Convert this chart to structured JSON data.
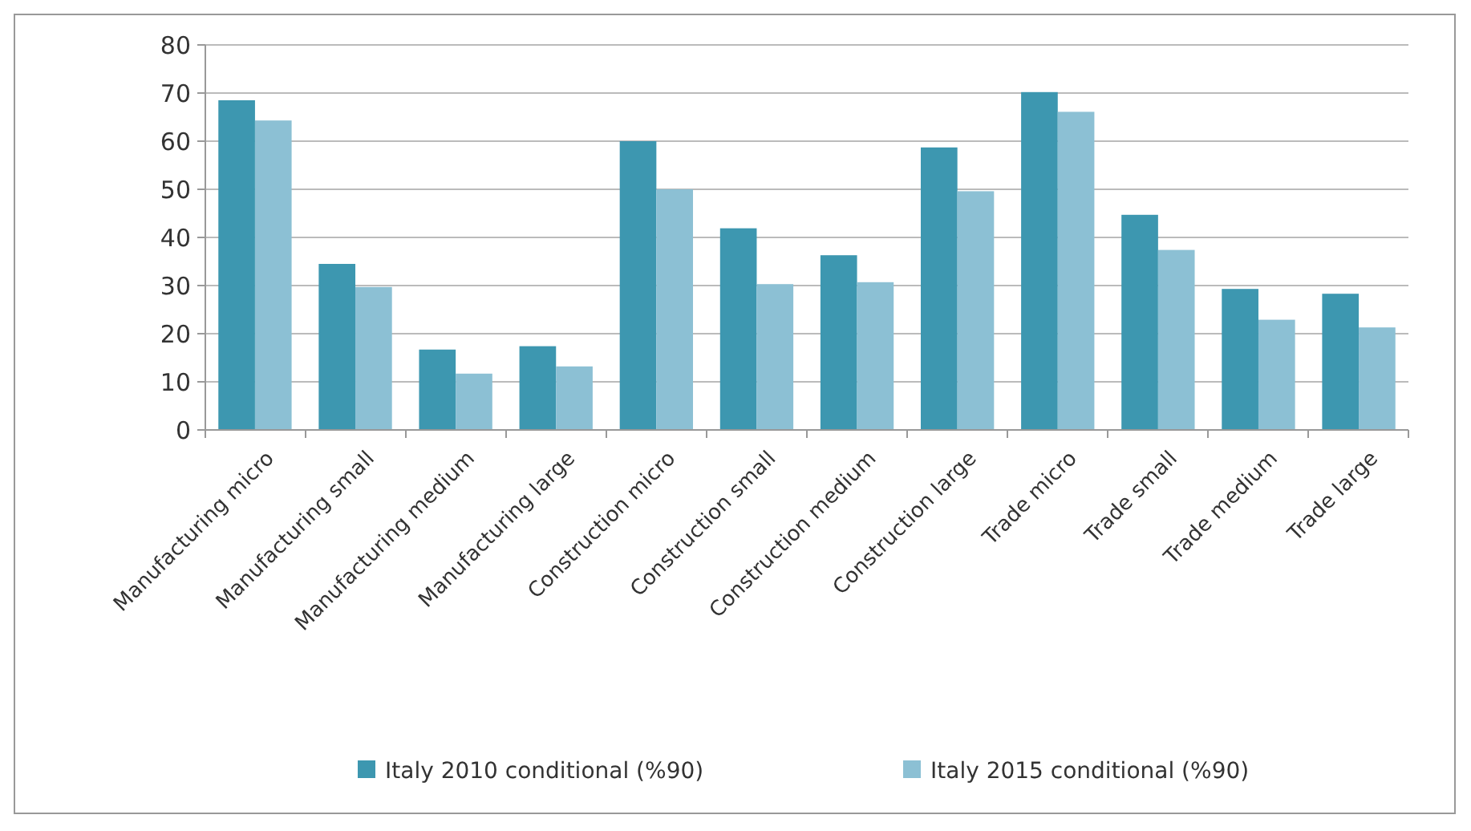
{
  "chart_data": {
    "type": "bar",
    "categories": [
      "Manufacturing micro",
      "Manufacturing small",
      "Manufacturing medium",
      "Manufacturing large",
      "Construction micro",
      "Construction small",
      "Construction medium",
      "Construction large",
      "Trade micro",
      "Trade small",
      "Trade medium",
      "Trade large"
    ],
    "series": [
      {
        "name": "Italy 2010 conditional (%90)",
        "color": "#3d97b0",
        "values": [
          68.5,
          34.5,
          16.7,
          17.4,
          60,
          41.9,
          36.3,
          58.7,
          70.2,
          44.7,
          29.3,
          28.3
        ]
      },
      {
        "name": "Italy 2015 conditional (%90)",
        "color": "#8cc0d4",
        "values": [
          64.3,
          29.7,
          11.7,
          13.2,
          50,
          30.3,
          30.7,
          49.6,
          66.1,
          37.4,
          22.9,
          21.3
        ]
      }
    ],
    "ylim": [
      0,
      80
    ],
    "yticks": [
      0,
      10,
      20,
      30,
      40,
      50,
      60,
      70,
      80
    ],
    "grid": "y",
    "legend": "bottom"
  }
}
